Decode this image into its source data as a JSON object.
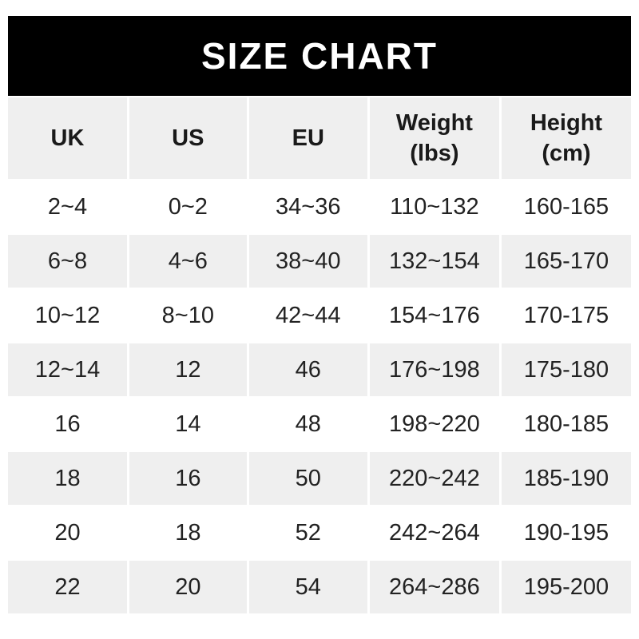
{
  "title": "SIZE CHART",
  "chart_data": {
    "type": "table",
    "title": "SIZE CHART",
    "columns": [
      {
        "label": "UK",
        "unit": ""
      },
      {
        "label": "US",
        "unit": ""
      },
      {
        "label": "EU",
        "unit": ""
      },
      {
        "label": "Weight",
        "unit": "(lbs)"
      },
      {
        "label": "Height",
        "unit": "(cm)"
      }
    ],
    "rows": [
      [
        "2~4",
        "0~2",
        "34~36",
        "110~132",
        "160-165"
      ],
      [
        "6~8",
        "4~6",
        "38~40",
        "132~154",
        "165-170"
      ],
      [
        "10~12",
        "8~10",
        "42~44",
        "154~176",
        "170-175"
      ],
      [
        "12~14",
        "12",
        "46",
        "176~198",
        "175-180"
      ],
      [
        "16",
        "14",
        "48",
        "198~220",
        "180-185"
      ],
      [
        "18",
        "16",
        "50",
        "220~242",
        "185-190"
      ],
      [
        "20",
        "18",
        "52",
        "242~264",
        "190-195"
      ],
      [
        "22",
        "20",
        "54",
        "264~286",
        "195-200"
      ]
    ]
  },
  "colors": {
    "header_bar_bg": "#000000",
    "header_bar_text": "#ffffff",
    "row_alt_bg": "#efefef",
    "row_bg": "#ffffff",
    "header_text": "#1a1a1a",
    "cell_text": "#222222"
  }
}
